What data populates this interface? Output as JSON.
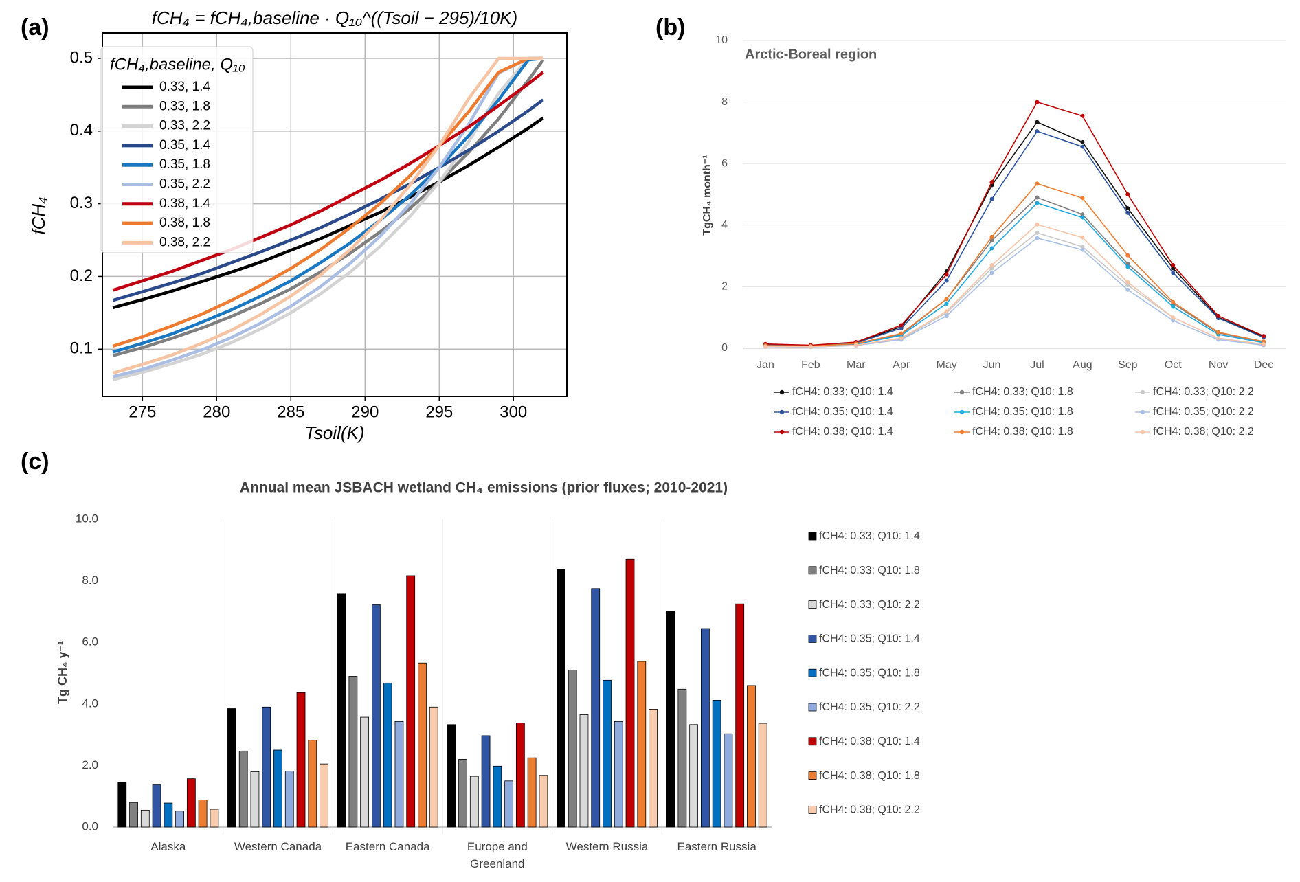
{
  "chart_data": [
    {
      "type": "line",
      "panel_label": "(a)",
      "title": "fCH₄ = fCH₄,baseline · Q₁₀^((Tsoil − 295)/10K)",
      "x_label": "Tsoil(K)",
      "y_label": "fCH₄",
      "legend": "upper left",
      "legend_title": "fCH₄,baseline, Q₁₀",
      "grid": true,
      "markers": false,
      "x": [
        273,
        275,
        277,
        279,
        281,
        283,
        285,
        287,
        289,
        291,
        293,
        295,
        297,
        299,
        301,
        302
      ],
      "xlim": [
        272.3,
        303.6
      ],
      "xticks": [
        275,
        280,
        285,
        290,
        295,
        300
      ],
      "ylim": [
        0.035,
        0.535
      ],
      "yticks": [
        0.1,
        0.2,
        0.3,
        0.4,
        0.5
      ],
      "series": [
        {
          "name": "0.33, 1.4",
          "color": "#000000",
          "values": [
            0.157,
            0.168,
            0.18,
            0.193,
            0.206,
            0.22,
            0.236,
            0.252,
            0.27,
            0.288,
            0.309,
            0.33,
            0.353,
            0.378,
            0.404,
            0.418
          ]
        },
        {
          "name": "0.33, 1.8",
          "color": "#7f7f7f",
          "values": [
            0.091,
            0.102,
            0.115,
            0.129,
            0.145,
            0.163,
            0.183,
            0.206,
            0.232,
            0.261,
            0.293,
            0.33,
            0.371,
            0.417,
            0.47,
            0.498
          ]
        },
        {
          "name": "0.33, 2.2",
          "color": "#d3d3d3",
          "values": [
            0.058,
            0.068,
            0.08,
            0.093,
            0.109,
            0.128,
            0.15,
            0.176,
            0.206,
            0.241,
            0.282,
            0.33,
            0.386,
            0.452,
            0.5,
            0.5
          ]
        },
        {
          "name": "0.35, 1.4",
          "color": "#2b4a8c",
          "values": [
            0.167,
            0.179,
            0.191,
            0.204,
            0.219,
            0.234,
            0.25,
            0.267,
            0.286,
            0.306,
            0.327,
            0.35,
            0.374,
            0.4,
            0.428,
            0.443
          ]
        },
        {
          "name": "0.35, 1.8",
          "color": "#1a78c2",
          "values": [
            0.096,
            0.108,
            0.121,
            0.137,
            0.154,
            0.173,
            0.194,
            0.219,
            0.246,
            0.277,
            0.311,
            0.35,
            0.394,
            0.443,
            0.498,
            0.5
          ]
        },
        {
          "name": "0.35, 2.2",
          "color": "#aabde2",
          "values": [
            0.062,
            0.072,
            0.085,
            0.099,
            0.116,
            0.136,
            0.159,
            0.186,
            0.218,
            0.255,
            0.299,
            0.35,
            0.41,
            0.48,
            0.5,
            0.5
          ]
        },
        {
          "name": "0.38, 1.4",
          "color": "#c00010",
          "values": [
            0.181,
            0.194,
            0.207,
            0.222,
            0.237,
            0.254,
            0.271,
            0.29,
            0.311,
            0.332,
            0.355,
            0.38,
            0.406,
            0.435,
            0.465,
            0.481
          ]
        },
        {
          "name": "0.38, 1.8",
          "color": "#ee7b30",
          "values": [
            0.104,
            0.117,
            0.132,
            0.148,
            0.167,
            0.188,
            0.211,
            0.237,
            0.267,
            0.3,
            0.338,
            0.38,
            0.427,
            0.481,
            0.5,
            0.5
          ]
        },
        {
          "name": "0.38, 2.2",
          "color": "#f6c3a3",
          "values": [
            0.067,
            0.079,
            0.092,
            0.108,
            0.126,
            0.148,
            0.173,
            0.202,
            0.237,
            0.277,
            0.325,
            0.38,
            0.445,
            0.5,
            0.5,
            0.5
          ]
        }
      ]
    },
    {
      "type": "line",
      "panel_label": "(b)",
      "title": "Arctic-Boreal region",
      "y_label": "TgCH₄ month⁻¹",
      "legend": "bottom",
      "grid": true,
      "markers": true,
      "categories": [
        "Jan",
        "Feb",
        "Mar",
        "Apr",
        "May",
        "Jun",
        "Jul",
        "Aug",
        "Sep",
        "Oct",
        "Nov",
        "Dec"
      ],
      "ylim": [
        0,
        10
      ],
      "yticks": [
        0,
        2,
        4,
        6,
        8,
        10
      ],
      "series": [
        {
          "name": "fCH4: 0.33; Q10: 1.4",
          "color": "#111111",
          "values": [
            0.12,
            0.08,
            0.18,
            0.7,
            2.5,
            5.3,
            7.35,
            6.7,
            4.55,
            2.6,
            1.0,
            0.38
          ]
        },
        {
          "name": "fCH4: 0.33; Q10: 1.8",
          "color": "#808080",
          "values": [
            0.08,
            0.06,
            0.14,
            0.45,
            1.6,
            3.5,
            4.9,
            4.35,
            2.75,
            1.45,
            0.5,
            0.2
          ]
        },
        {
          "name": "fCH4: 0.33; Q10: 2.2",
          "color": "#c8c8c8",
          "values": [
            0.05,
            0.04,
            0.1,
            0.3,
            1.15,
            2.6,
            3.75,
            3.3,
            2.05,
            1.0,
            0.32,
            0.12
          ]
        },
        {
          "name": "fCH4: 0.35; Q10: 1.4",
          "color": "#2e55a0",
          "values": [
            0.12,
            0.08,
            0.17,
            0.65,
            2.2,
            4.85,
            7.05,
            6.55,
            4.4,
            2.45,
            0.98,
            0.35
          ]
        },
        {
          "name": "fCH4: 0.35; Q10: 1.8",
          "color": "#1fa8e0",
          "values": [
            0.08,
            0.06,
            0.13,
            0.42,
            1.45,
            3.25,
            4.72,
            4.25,
            2.65,
            1.35,
            0.45,
            0.18
          ]
        },
        {
          "name": "fCH4: 0.35; Q10: 2.2",
          "color": "#a8c0e6",
          "values": [
            0.05,
            0.04,
            0.09,
            0.28,
            1.05,
            2.45,
            3.58,
            3.2,
            1.9,
            0.9,
            0.28,
            0.1
          ]
        },
        {
          "name": "fCH4: 0.38; Q10: 1.4",
          "color": "#c00000",
          "values": [
            0.14,
            0.1,
            0.2,
            0.75,
            2.4,
            5.4,
            8.0,
            7.55,
            5.0,
            2.7,
            1.05,
            0.4
          ]
        },
        {
          "name": "fCH4: 0.38; Q10: 1.8",
          "color": "#ed7d31",
          "values": [
            0.09,
            0.07,
            0.15,
            0.48,
            1.6,
            3.62,
            5.35,
            4.88,
            3.02,
            1.5,
            0.52,
            0.22
          ]
        },
        {
          "name": "fCH4: 0.38; Q10: 2.2",
          "color": "#f8c4a8",
          "values": [
            0.06,
            0.05,
            0.1,
            0.33,
            1.2,
            2.7,
            4.02,
            3.6,
            2.15,
            1.0,
            0.33,
            0.13
          ]
        }
      ]
    },
    {
      "type": "bar",
      "panel_label": "(c)",
      "title": "Annual mean JSBACH wetland CH₄ emissions (prior fluxes; 2010-2021)",
      "y_label": "Tg CH₄ y⁻¹",
      "legend": "right",
      "grid": false,
      "categories": [
        "Alaska",
        "Western Canada",
        "Eastern Canada",
        "Europe and Greenland",
        "Western Russia",
        "Eastern Russia"
      ],
      "ylim": [
        0,
        10
      ],
      "yticks": [
        {
          "value": 0,
          "label": "0.0"
        },
        {
          "value": 2,
          "label": "2.0"
        },
        {
          "value": 4,
          "label": "4.0"
        },
        {
          "value": 6,
          "label": "6.0"
        },
        {
          "value": 8,
          "label": "8.0"
        },
        {
          "value": 10,
          "label": "10.0"
        }
      ],
      "series": [
        {
          "name": "fCH4: 0.33; Q10: 1.4",
          "color": "#000000",
          "values": [
            1.45,
            3.85,
            7.57,
            3.33,
            8.37,
            7.02
          ]
        },
        {
          "name": "fCH4: 0.33; Q10: 1.8",
          "color": "#808080",
          "values": [
            0.8,
            2.47,
            4.9,
            2.2,
            5.1,
            4.48
          ]
        },
        {
          "name": "fCH4: 0.33; Q10: 2.2",
          "color": "#d9d9d9",
          "values": [
            0.55,
            1.8,
            3.57,
            1.65,
            3.65,
            3.33
          ]
        },
        {
          "name": "fCH4: 0.35; Q10: 1.4",
          "color": "#2f55a4",
          "values": [
            1.37,
            3.9,
            7.22,
            2.97,
            7.75,
            6.45
          ]
        },
        {
          "name": "fCH4: 0.35; Q10: 1.8",
          "color": "#0070c0",
          "values": [
            0.78,
            2.5,
            4.68,
            1.98,
            4.77,
            4.12
          ]
        },
        {
          "name": "fCH4: 0.35; Q10: 2.2",
          "color": "#8faadc",
          "values": [
            0.52,
            1.82,
            3.43,
            1.5,
            3.43,
            3.03
          ]
        },
        {
          "name": "fCH4: 0.38; Q10: 1.4",
          "color": "#c00000",
          "values": [
            1.57,
            4.37,
            8.17,
            3.38,
            8.7,
            7.25
          ]
        },
        {
          "name": "fCH4: 0.38; Q10: 1.8",
          "color": "#ed7d31",
          "values": [
            0.88,
            2.82,
            5.33,
            2.25,
            5.38,
            4.6
          ]
        },
        {
          "name": "fCH4: 0.38; Q10: 2.2",
          "color": "#f8cbad",
          "values": [
            0.58,
            2.05,
            3.9,
            1.68,
            3.83,
            3.37
          ]
        }
      ]
    }
  ]
}
